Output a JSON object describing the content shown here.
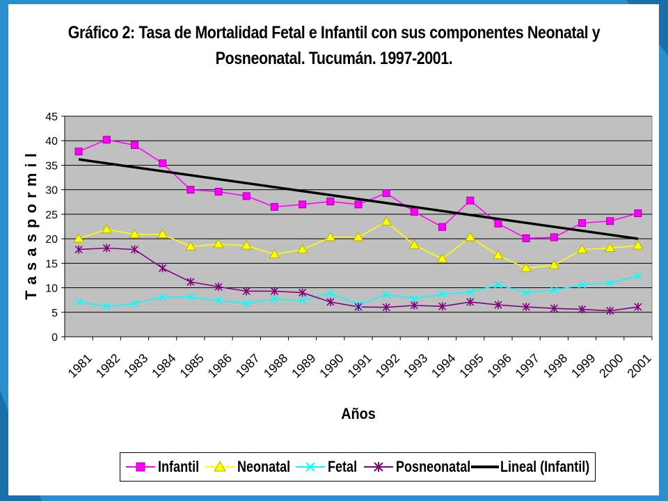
{
  "page": {
    "title_line1": "Gráfico 2: Tasa de Mortalidad Fetal e Infantil con sus componentes Neonatal y",
    "title_line2": "Posneonatal. Tucumán. 1997-2001."
  },
  "colors": {
    "frame": "#2a8fcc",
    "plot_background": "#c0c0c0",
    "gridline": "#000000",
    "infantil": "#ff00ff",
    "neonatal": "#ffff00",
    "fetal": "#00ffff",
    "posneonatal": "#800080",
    "lineal": "#000000"
  },
  "chart_data": {
    "type": "line",
    "title": "Gráfico 2: Tasa de Mortalidad Fetal e Infantil con sus componentes Neonatal y Posneonatal. Tucumán. 1997-2001.",
    "xlabel": "Años",
    "ylabel": "T a s a s  p o r  m i l",
    "ylim": [
      0,
      45
    ],
    "yticks": [
      0,
      5,
      10,
      15,
      20,
      25,
      30,
      35,
      40,
      45
    ],
    "grid": true,
    "legend_position": "bottom",
    "categories": [
      "1981",
      "1982",
      "1983",
      "1984",
      "1985",
      "1986",
      "1987",
      "1988",
      "1989",
      "1990",
      "1991",
      "1992",
      "1993",
      "1994",
      "1995",
      "1996",
      "1997",
      "1998",
      "1999",
      "2000",
      "2001"
    ],
    "series": [
      {
        "name": "Infantil",
        "color": "#ff00ff",
        "marker": "square",
        "values": [
          37.8,
          40.2,
          39.1,
          35.4,
          30.0,
          29.6,
          28.7,
          26.5,
          27.0,
          27.6,
          27.0,
          29.3,
          25.5,
          22.4,
          27.8,
          23.1,
          20.1,
          20.3,
          23.2,
          23.6,
          25.2
        ]
      },
      {
        "name": "Neonatal",
        "color": "#ffff00",
        "marker": "triangle",
        "values": [
          20.0,
          21.9,
          20.9,
          20.9,
          18.4,
          18.9,
          18.6,
          16.8,
          17.8,
          20.3,
          20.3,
          23.5,
          18.7,
          15.9,
          20.3,
          16.6,
          14.0,
          14.6,
          17.8,
          18.1,
          18.6
        ]
      },
      {
        "name": "Fetal",
        "color": "#00ffff",
        "marker": "x",
        "values": [
          7.1,
          6.2,
          6.8,
          8.1,
          8.1,
          7.4,
          6.8,
          7.7,
          7.4,
          8.9,
          6.6,
          8.6,
          7.8,
          8.7,
          9.1,
          10.6,
          9.0,
          9.5,
          10.6,
          11.0,
          12.4
        ]
      },
      {
        "name": "Posneonatal",
        "color": "#800080",
        "marker": "star",
        "values": [
          17.8,
          18.1,
          17.8,
          14.0,
          11.2,
          10.2,
          9.3,
          9.3,
          9.0,
          7.1,
          6.1,
          6.0,
          6.4,
          6.2,
          7.1,
          6.5,
          6.1,
          5.8,
          5.6,
          5.3,
          6.1
        ]
      }
    ],
    "trendline": {
      "name": "Lineal (Infantil)",
      "color": "#000000",
      "start": 36.2,
      "end": 20.0
    }
  }
}
